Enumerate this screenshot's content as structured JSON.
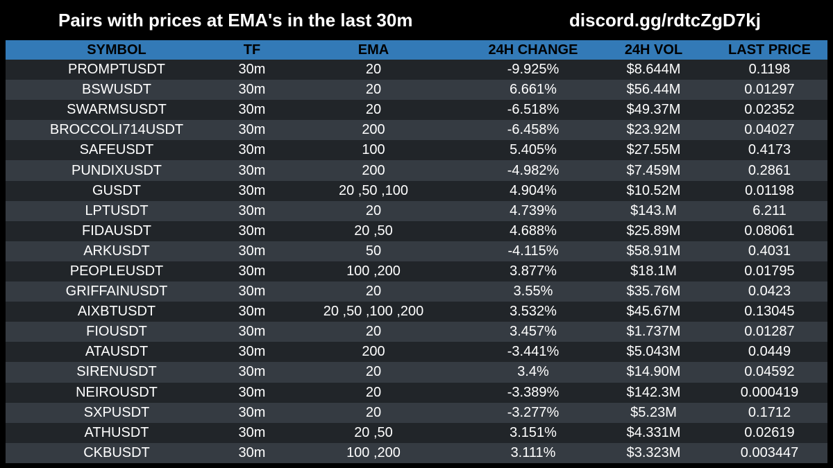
{
  "header": {
    "title": "Pairs with prices at EMA's in the last 30m",
    "link": "discord.gg/rdtcZgD7kj"
  },
  "table": {
    "columns": [
      "SYMBOL",
      "TF",
      "EMA",
      "24H CHANGE",
      "24H VOL",
      "LAST PRICE"
    ],
    "rows": [
      [
        "PROMPTUSDT",
        "30m",
        "20",
        "-9.925%",
        "$8.644M",
        "0.1198"
      ],
      [
        "BSWUSDT",
        "30m",
        "20",
        "6.661%",
        "$56.44M",
        "0.01297"
      ],
      [
        "SWARMSUSDT",
        "30m",
        "20",
        "-6.518%",
        "$49.37M",
        "0.02352"
      ],
      [
        "BROCCOLI714USDT",
        "30m",
        "200",
        "-6.458%",
        "$23.92M",
        "0.04027"
      ],
      [
        "SAFEUSDT",
        "30m",
        "100",
        "5.405%",
        "$27.55M",
        "0.4173"
      ],
      [
        "PUNDIXUSDT",
        "30m",
        "200",
        "-4.982%",
        "$7.459M",
        "0.2861"
      ],
      [
        "GUSDT",
        "30m",
        "20 ,50 ,100",
        "4.904%",
        "$10.52M",
        "0.01198"
      ],
      [
        "LPTUSDT",
        "30m",
        "20",
        "4.739%",
        "$143.M",
        "6.211"
      ],
      [
        "FIDAUSDT",
        "30m",
        "20 ,50",
        "4.688%",
        "$25.89M",
        "0.08061"
      ],
      [
        "ARKUSDT",
        "30m",
        "50",
        "-4.115%",
        "$58.91M",
        "0.4031"
      ],
      [
        "PEOPLEUSDT",
        "30m",
        "100 ,200",
        "3.877%",
        "$18.1M",
        "0.01795"
      ],
      [
        "GRIFFAINUSDT",
        "30m",
        "20",
        "3.55%",
        "$35.76M",
        "0.0423"
      ],
      [
        "AIXBTUSDT",
        "30m",
        "20 ,50 ,100 ,200",
        "3.532%",
        "$45.67M",
        "0.13045"
      ],
      [
        "FIOUSDT",
        "30m",
        "20",
        "3.457%",
        "$1.737M",
        "0.01287"
      ],
      [
        "ATAUSDT",
        "30m",
        "200",
        "-3.441%",
        "$5.043M",
        "0.0449"
      ],
      [
        "SIRENUSDT",
        "30m",
        "20",
        "3.4%",
        "$14.90M",
        "0.04592"
      ],
      [
        "NEIROUSDT",
        "30m",
        "20",
        "-3.389%",
        "$142.3M",
        "0.000419"
      ],
      [
        "SXPUSDT",
        "30m",
        "20",
        "-3.277%",
        "$5.23M",
        "0.1712"
      ],
      [
        "ATHUSDT",
        "30m",
        "20 ,50",
        "3.151%",
        "$4.331M",
        "0.02619"
      ],
      [
        "CKBUSDT",
        "30m",
        "100 ,200",
        "3.111%",
        "$3.323M",
        "0.003447"
      ]
    ]
  }
}
